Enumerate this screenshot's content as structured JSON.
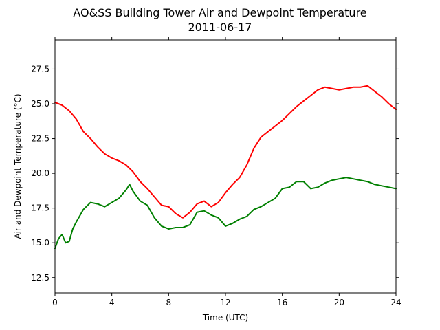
{
  "chart_data": {
    "type": "line",
    "title": "AO&SS Building Tower Air and Dewpoint Temperature",
    "subtitle": "2011-06-17",
    "xlabel": "Time (UTC)",
    "ylabel": "Air and Dewpoint Temperature (°C)",
    "xlim": [
      0,
      24
    ],
    "ylim": [
      11.4,
      29.6
    ],
    "xticks": [
      "0",
      "4",
      "8",
      "12",
      "16",
      "20",
      "24"
    ],
    "yticks": [
      "12.5",
      "15.0",
      "17.5",
      "20.0",
      "22.5",
      "25.0",
      "27.5"
    ],
    "grid": false,
    "legend": "none",
    "series": [
      {
        "color": "#ff0000",
        "x": [
          0,
          0.5,
          1,
          1.5,
          2,
          2.5,
          3,
          3.5,
          4,
          4.5,
          5,
          5.5,
          6,
          6.5,
          7,
          7.5,
          8,
          8.5,
          9,
          9.5,
          10,
          10.5,
          11,
          11.5,
          12,
          12.5,
          13,
          13.5,
          14,
          14.5,
          15,
          15.5,
          16,
          16.5,
          17,
          17.5,
          18,
          18.5,
          19,
          19.5,
          20,
          20.5,
          21,
          21.5,
          22,
          22.5,
          23,
          23.5,
          24
        ],
        "y": [
          25.1,
          24.9,
          24.5,
          23.9,
          23.0,
          22.5,
          21.9,
          21.4,
          21.1,
          20.9,
          20.6,
          20.1,
          19.4,
          18.9,
          18.3,
          17.7,
          17.6,
          17.1,
          16.8,
          17.2,
          17.8,
          18.0,
          17.6,
          17.9,
          18.6,
          19.2,
          19.7,
          20.6,
          21.8,
          22.6,
          23.0,
          23.4,
          23.8,
          24.3,
          24.8,
          25.2,
          25.6,
          26.0,
          26.2,
          26.1,
          26.0,
          26.1,
          26.2,
          26.2,
          26.3,
          25.9,
          25.5,
          25.0,
          24.6
        ]
      },
      {
        "color": "#008000",
        "x": [
          0,
          0.25,
          0.5,
          0.75,
          1,
          1.25,
          1.5,
          2,
          2.5,
          3,
          3.5,
          4,
          4.5,
          5,
          5.25,
          5.5,
          6,
          6.5,
          7,
          7.5,
          8,
          8.5,
          9,
          9.5,
          10,
          10.5,
          11,
          11.5,
          12,
          12.5,
          13,
          13.5,
          14,
          14.5,
          15,
          15.5,
          16,
          16.5,
          17,
          17.5,
          18,
          18.5,
          19,
          19.5,
          20,
          20.5,
          21,
          21.5,
          22,
          22.5,
          23,
          23.5,
          24
        ],
        "y": [
          14.6,
          15.3,
          15.6,
          15.0,
          15.1,
          16.0,
          16.5,
          17.4,
          17.9,
          17.8,
          17.6,
          17.9,
          18.2,
          18.8,
          19.2,
          18.7,
          18.0,
          17.7,
          16.8,
          16.2,
          16.0,
          16.1,
          16.1,
          16.3,
          17.2,
          17.3,
          17.0,
          16.8,
          16.2,
          16.4,
          16.7,
          16.9,
          17.4,
          17.6,
          17.9,
          18.2,
          18.9,
          19.0,
          19.4,
          19.4,
          18.9,
          19.0,
          19.3,
          19.5,
          19.6,
          19.7,
          19.6,
          19.5,
          19.4,
          19.2,
          19.1,
          19.0,
          18.9
        ]
      }
    ]
  }
}
